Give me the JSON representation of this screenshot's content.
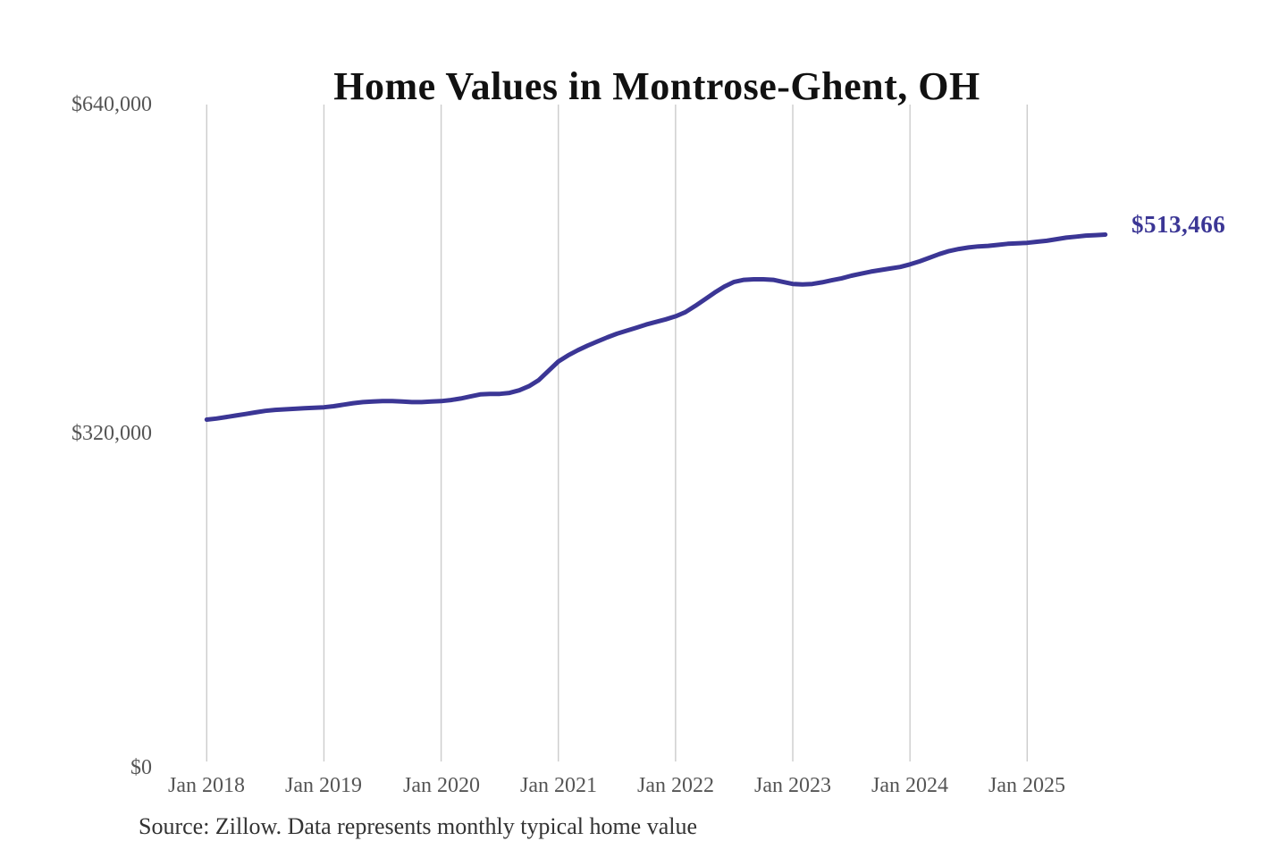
{
  "title": "Home Values in Montrose-Ghent, OH",
  "source": "Source: Zillow. Data represents monthly typical home value",
  "colors": {
    "background": "#ffffff",
    "line": "#3b3695",
    "grid": "#cccccc",
    "axis_text": "#555555",
    "title_text": "#111111",
    "source_text": "#333333",
    "end_label_text": "#3b3695"
  },
  "chart_data": {
    "type": "line",
    "title": "Home Values in Montrose-Ghent, OH",
    "xlabel": "",
    "ylabel": "",
    "x_unit": "month",
    "x_start": "2018-01",
    "x_end": "2025-09",
    "ylim": [
      0,
      640000
    ],
    "grid": "vertical-only",
    "legend": "none",
    "y_tick_labels": [
      "$0",
      "$320,000",
      "$640,000"
    ],
    "y_tick_values": [
      0,
      320000,
      640000
    ],
    "x_tick_labels": [
      "Jan 2018",
      "Jan 2019",
      "Jan 2020",
      "Jan 2021",
      "Jan 2022",
      "Jan 2023",
      "Jan 2024",
      "Jan 2025"
    ],
    "x_tick_months": [
      0,
      12,
      24,
      36,
      48,
      60,
      72,
      84
    ],
    "end_value": 513466,
    "end_value_label": "$513,466",
    "series": [
      {
        "name": "Monthly typical home value",
        "values": [
          333500,
          334500,
          336000,
          337500,
          339000,
          340500,
          342000,
          343000,
          343500,
          344000,
          344500,
          345000,
          345500,
          346500,
          348000,
          349500,
          350500,
          351000,
          351500,
          351500,
          351000,
          350500,
          350500,
          351000,
          351500,
          352500,
          354000,
          356000,
          358000,
          358500,
          358500,
          359500,
          362000,
          366000,
          372000,
          381000,
          390000,
          396000,
          401000,
          405500,
          409500,
          413500,
          417000,
          420000,
          423000,
          426000,
          428500,
          431000,
          434000,
          438000,
          444000,
          450500,
          457000,
          463000,
          467500,
          469500,
          470000,
          470000,
          469500,
          467500,
          465500,
          465000,
          465500,
          467000,
          469000,
          471000,
          473500,
          475500,
          477500,
          479000,
          480500,
          482000,
          484500,
          487500,
          491000,
          494500,
          497500,
          499500,
          501000,
          502000,
          502500,
          503500,
          504500,
          505000,
          505500,
          506500,
          507500,
          509000,
          510500,
          511500,
          512500,
          513000,
          513466
        ]
      }
    ]
  }
}
